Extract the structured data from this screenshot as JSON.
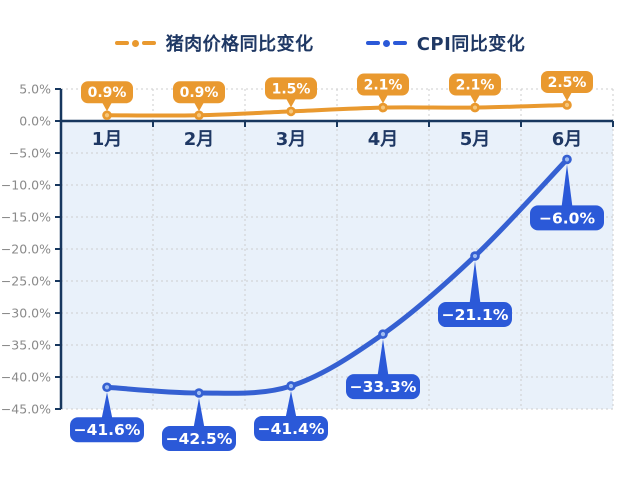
{
  "legend": {
    "items": [
      {
        "label": "猪肉价格同比变化",
        "color": "#E9992F"
      },
      {
        "label": "CPI同比变化",
        "color": "#2B59D8"
      }
    ]
  },
  "chart_data": {
    "type": "line",
    "title": "",
    "xlabel": "",
    "ylabel": "",
    "categories": [
      "1月",
      "2月",
      "3月",
      "4月",
      "5月",
      "6月"
    ],
    "series": [
      {
        "name": "猪肉价格同比变化",
        "color": "#E9992F",
        "marker_inner": "#F6C77C",
        "values": [
          0.9,
          0.9,
          1.5,
          2.1,
          2.1,
          2.5
        ],
        "labels": [
          "0.9%",
          "0.9%",
          "1.5%",
          "2.1%",
          "2.1%",
          "2.5%"
        ],
        "label_position": "above"
      },
      {
        "name": "CPI同比变化",
        "color": "#3560D2",
        "box_color": "#2B59D8",
        "marker_inner": "#9FBCF2",
        "values": [
          -41.6,
          -42.5,
          -41.4,
          -33.3,
          -21.1,
          -6.0
        ],
        "labels": [
          "−41.6%",
          "−42.5%",
          "−41.4%",
          "−33.3%",
          "−21.1%",
          "−6.0%"
        ],
        "label_position": "below"
      }
    ],
    "ylim": [
      -45,
      5
    ],
    "y_ticks": [
      5,
      0,
      -5,
      -10,
      -15,
      -20,
      -25,
      -30,
      -35,
      -40,
      -45
    ],
    "y_tick_labels": [
      "5.0%",
      "0.0%",
      "−5.0%",
      "−10.0%",
      "−15.0%",
      "−20.0%",
      "−25.0%",
      "−30.0%",
      "−35.0%",
      "−40.0%",
      "−45.0%"
    ],
    "legend_position": "top",
    "grid": "dashed",
    "colors": {
      "axis": "#17375E",
      "gridline": "#CDCDCD",
      "category_label": "#1F3864",
      "y_tick_label": "#8A8A8A",
      "plot_bg_below_zero": "#E9F1FA",
      "label_text": "#FFFFFF"
    }
  }
}
